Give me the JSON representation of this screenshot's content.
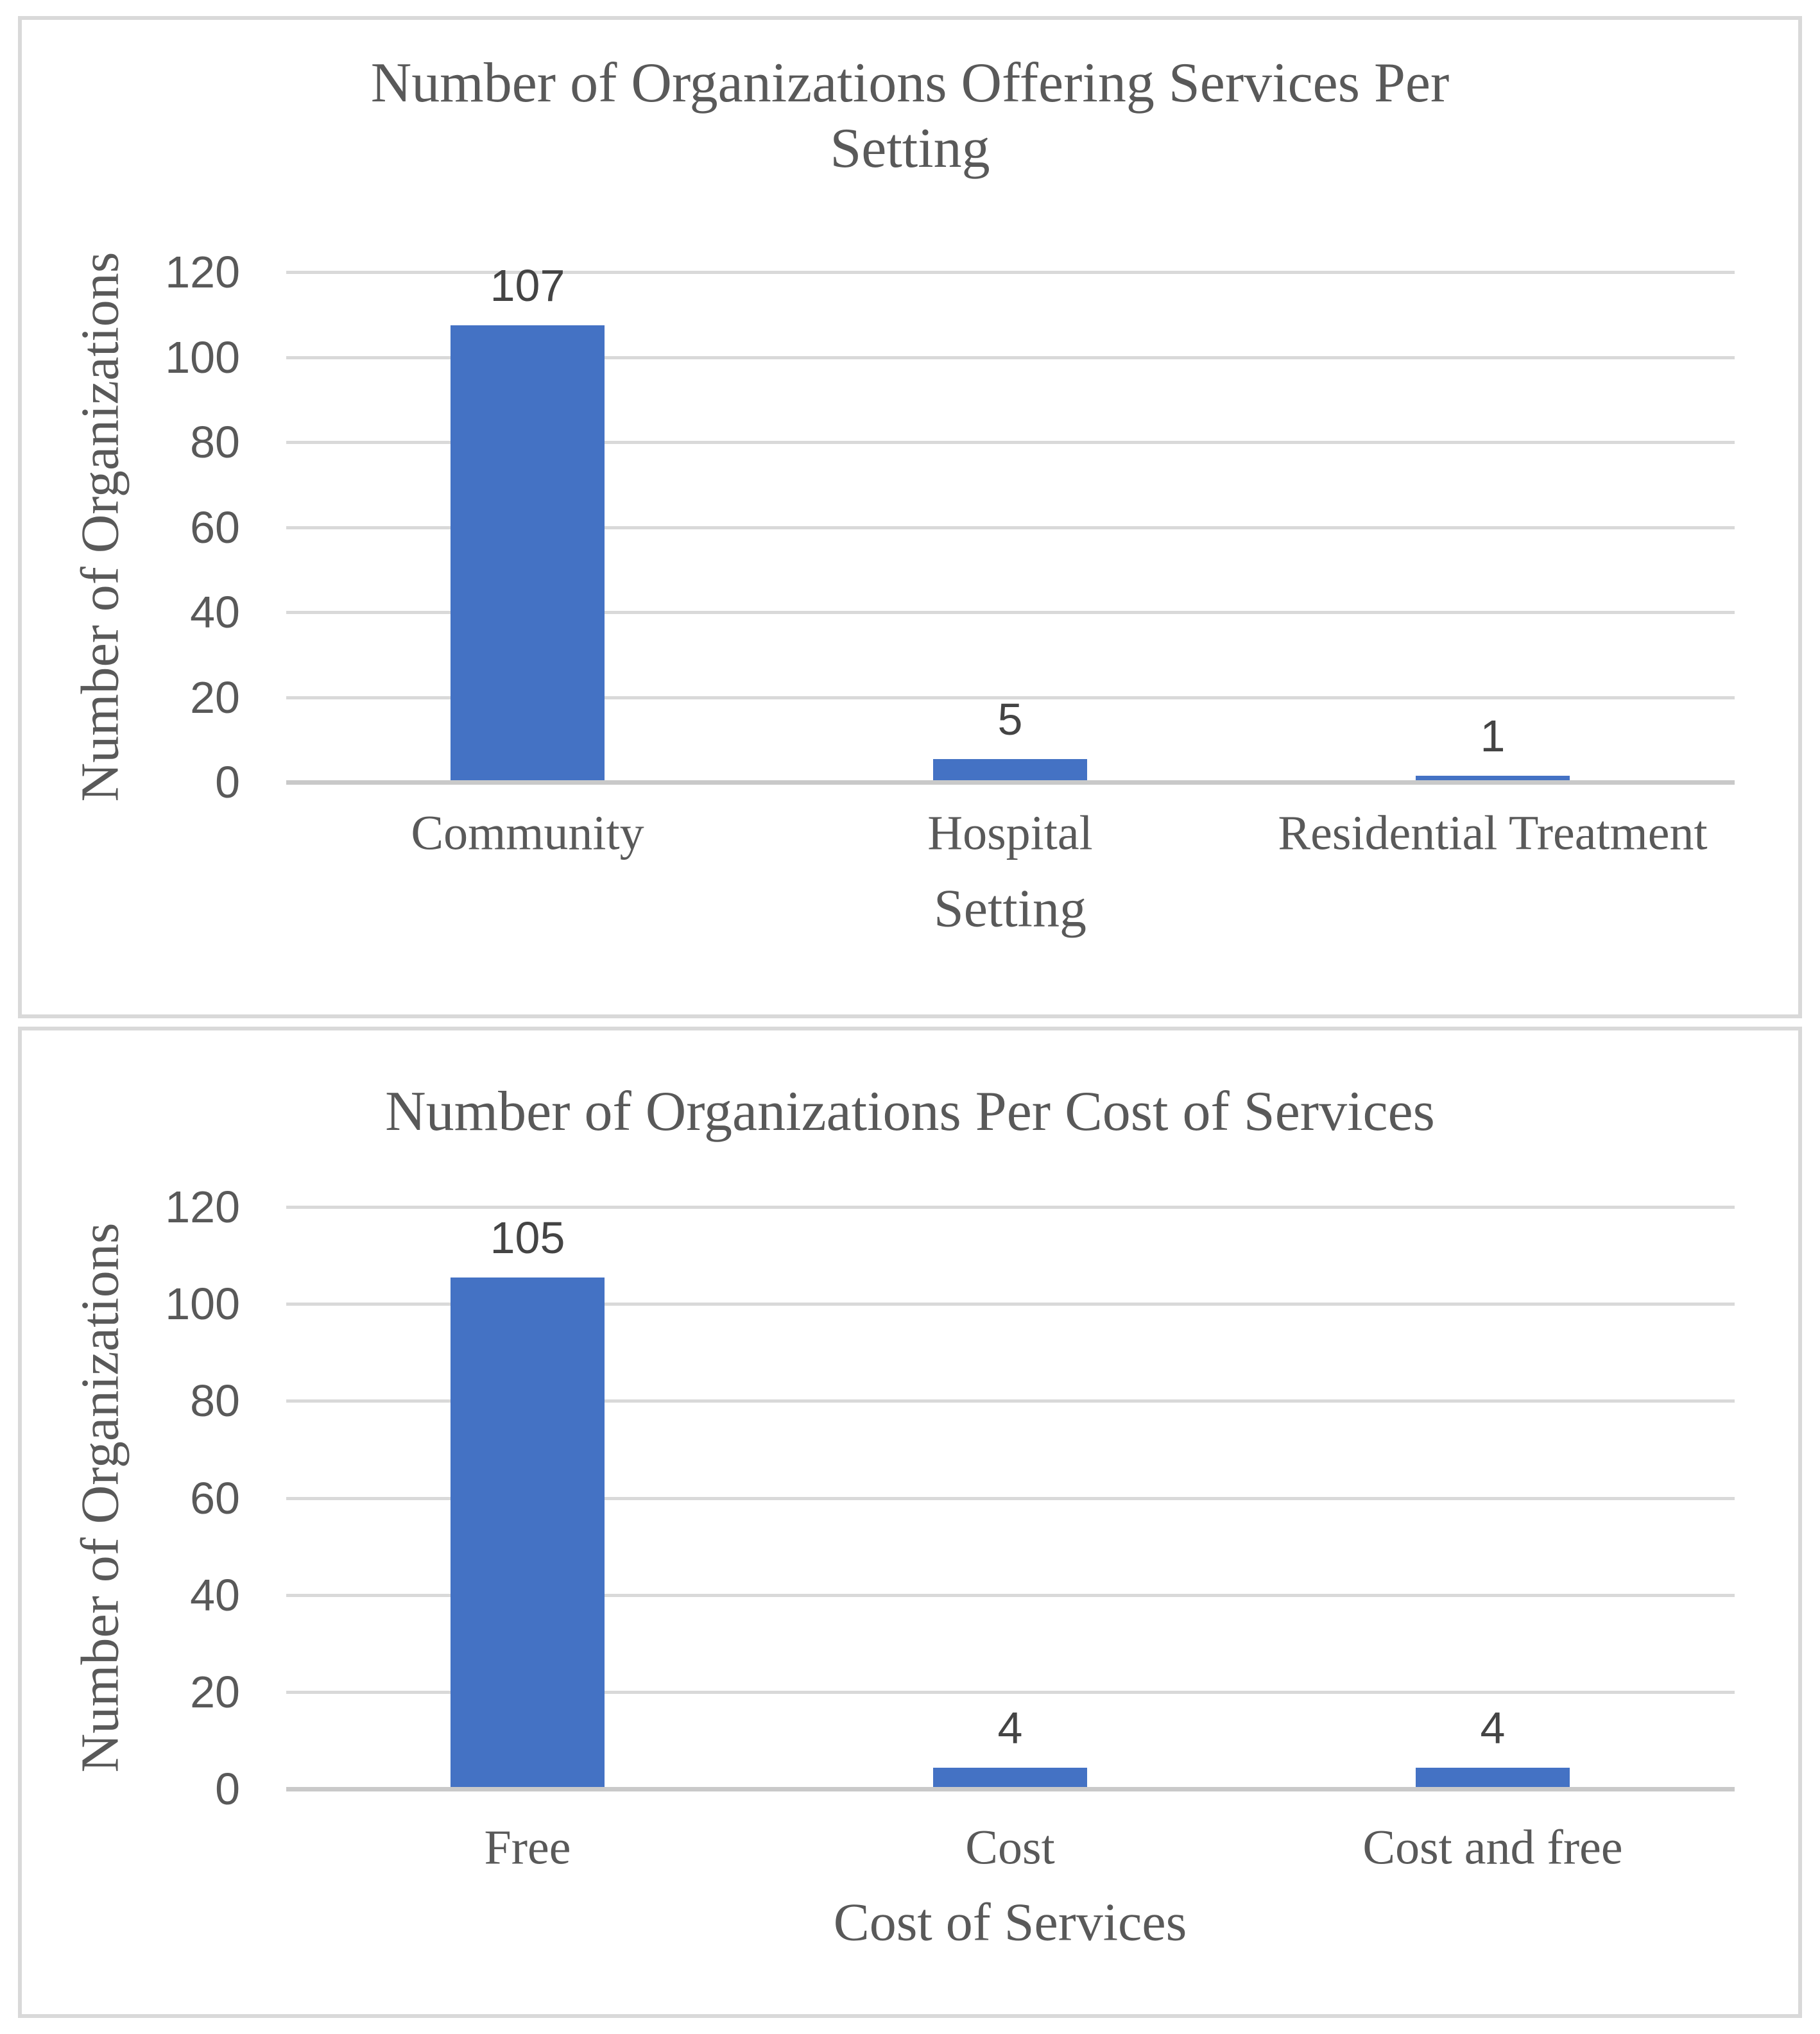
{
  "colors": {
    "bar": "#4472C4",
    "gridline": "#D9D9D9",
    "axis_line": "#C9C9C9",
    "panel_border": "#D9D9D9",
    "text": "#595959",
    "data_label": "#444444",
    "background": "#FFFFFF"
  },
  "chart_data": [
    {
      "type": "bar",
      "title": "Number of Organizations Offering Services Per Setting",
      "title_lines": [
        "Number of Organizations Offering Services Per",
        "Setting"
      ],
      "xlabel": "Setting",
      "ylabel": "Number of Organizations",
      "categories": [
        "Community",
        "Hospital",
        "Residential Treatment"
      ],
      "values": [
        107,
        5,
        1
      ],
      "data_labels": [
        "107",
        "5",
        "1"
      ],
      "yticks": [
        0,
        20,
        40,
        60,
        80,
        100,
        120
      ],
      "ylim": [
        0,
        120
      ],
      "grid": true,
      "legend": false,
      "bar_color": "#4472C4"
    },
    {
      "type": "bar",
      "title": "Number of Organizations Per Cost of Services",
      "title_lines": [
        "Number of Organizations Per Cost of Services"
      ],
      "xlabel": "Cost of Services",
      "ylabel": "Number of Organizations",
      "categories": [
        "Free",
        "Cost",
        "Cost and free"
      ],
      "values": [
        105,
        4,
        4
      ],
      "data_labels": [
        "105",
        "4",
        "4"
      ],
      "yticks": [
        0,
        20,
        40,
        60,
        80,
        100,
        120
      ],
      "ylim": [
        0,
        120
      ],
      "grid": true,
      "legend": false,
      "bar_color": "#4472C4"
    }
  ]
}
